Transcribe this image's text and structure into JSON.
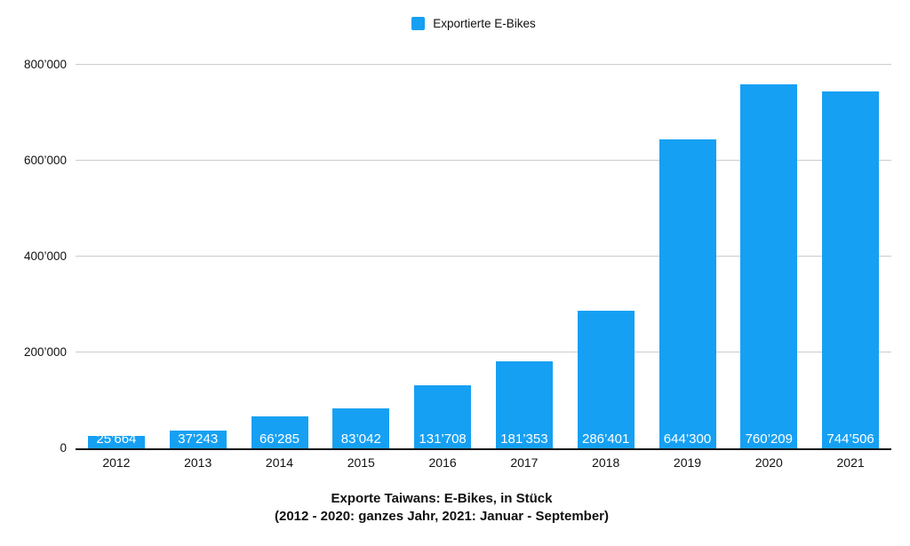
{
  "legend": {
    "swatch_color": "#16A0F3"
  },
  "colors": {
    "bar": "#16A0F3",
    "gridline": "#cccccc",
    "axis": "#111111",
    "value_label_text": "#ffffff"
  },
  "chart_data": {
    "type": "bar",
    "title": "Exporte Taiwans: E-Bikes, in Stück",
    "subtitle": "(2012 - 2020: ganzes Jahr, 2021: Januar - September)",
    "legend": [
      "Exportierte E-Bikes"
    ],
    "legend_position": "top-center",
    "grid": true,
    "categories": [
      "2012",
      "2013",
      "2014",
      "2015",
      "2016",
      "2017",
      "2018",
      "2019",
      "2020",
      "2021"
    ],
    "values": [
      25664,
      37243,
      66285,
      83042,
      131708,
      181353,
      286401,
      644300,
      760209,
      744506
    ],
    "value_labels": [
      "25’664",
      "37’243",
      "66’285",
      "83’042",
      "131’708",
      "181’353",
      "286’401",
      "644’300",
      "760’209",
      "744’506"
    ],
    "series": [
      {
        "name": "Exportierte E-Bikes",
        "values": [
          25664,
          37243,
          66285,
          83042,
          131708,
          181353,
          286401,
          644300,
          760209,
          744506
        ]
      }
    ],
    "xlabel": "",
    "ylabel": "",
    "ylim": [
      0,
      800000
    ],
    "yticks": {
      "values": [
        0,
        200000,
        400000,
        600000,
        800000
      ],
      "labels": [
        "0",
        "200’000",
        "400’000",
        "600’000",
        "800’000"
      ]
    },
    "bar_color": "#16A0F3",
    "number_format": "apostrophe-thousands"
  }
}
